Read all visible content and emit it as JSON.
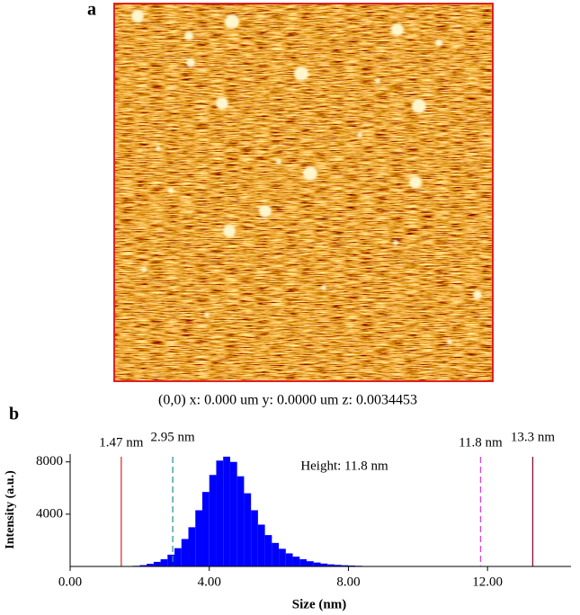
{
  "panel_a": {
    "label": "a",
    "caption": "(0,0)  x: 0.000 um   y: 0.0000 um  z: 0.0034453"
  },
  "chart_data": {
    "type": "histogram",
    "panel_label": "b",
    "xlabel": "Size (nm)",
    "ylabel": "Intensity (a.u.)",
    "annotation": "Height: 11.8 nm",
    "color": "#0000ff",
    "bins": [
      1.6,
      1.8,
      2.0,
      2.2,
      2.4,
      2.6,
      2.8,
      3.0,
      3.2,
      3.4,
      3.6,
      3.8,
      4.0,
      4.2,
      4.4,
      4.6,
      4.8,
      5.0,
      5.2,
      5.4,
      5.6,
      5.8,
      6.0,
      6.2,
      6.4,
      6.6,
      6.8,
      7.0,
      7.2,
      7.4,
      7.6,
      7.8,
      8.0,
      8.2,
      8.4,
      8.6,
      8.8,
      9.0
    ],
    "counts": [
      20,
      50,
      100,
      200,
      350,
      550,
      900,
      1400,
      2100,
      3000,
      4300,
      5700,
      7000,
      8100,
      8400,
      8000,
      6900,
      5600,
      4300,
      3200,
      2400,
      1800,
      1350,
      1000,
      750,
      550,
      400,
      300,
      220,
      160,
      120,
      90,
      70,
      50,
      35,
      25,
      15
    ],
    "markers": [
      {
        "value": 1.47,
        "label": "1.47 nm",
        "color": "#e03030",
        "dashed": false
      },
      {
        "value": 2.95,
        "label": "2.95 nm",
        "color": "#2a9a9a",
        "dashed": true
      },
      {
        "value": 11.8,
        "label": "11.8 nm",
        "color": "#e040e0",
        "dashed": true
      },
      {
        "value": 13.3,
        "label": "13.3 nm",
        "color": "#8a1030",
        "dashed": false
      }
    ],
    "xlim": [
      0,
      14.4
    ],
    "ylim": [
      0,
      8600
    ],
    "xticks": [
      {
        "value": 0,
        "label": "0.00"
      },
      {
        "value": 4,
        "label": "4.00"
      },
      {
        "value": 8,
        "label": "8.00"
      },
      {
        "value": 12,
        "label": "12.00"
      }
    ],
    "yticks": [
      4000,
      8000
    ]
  }
}
